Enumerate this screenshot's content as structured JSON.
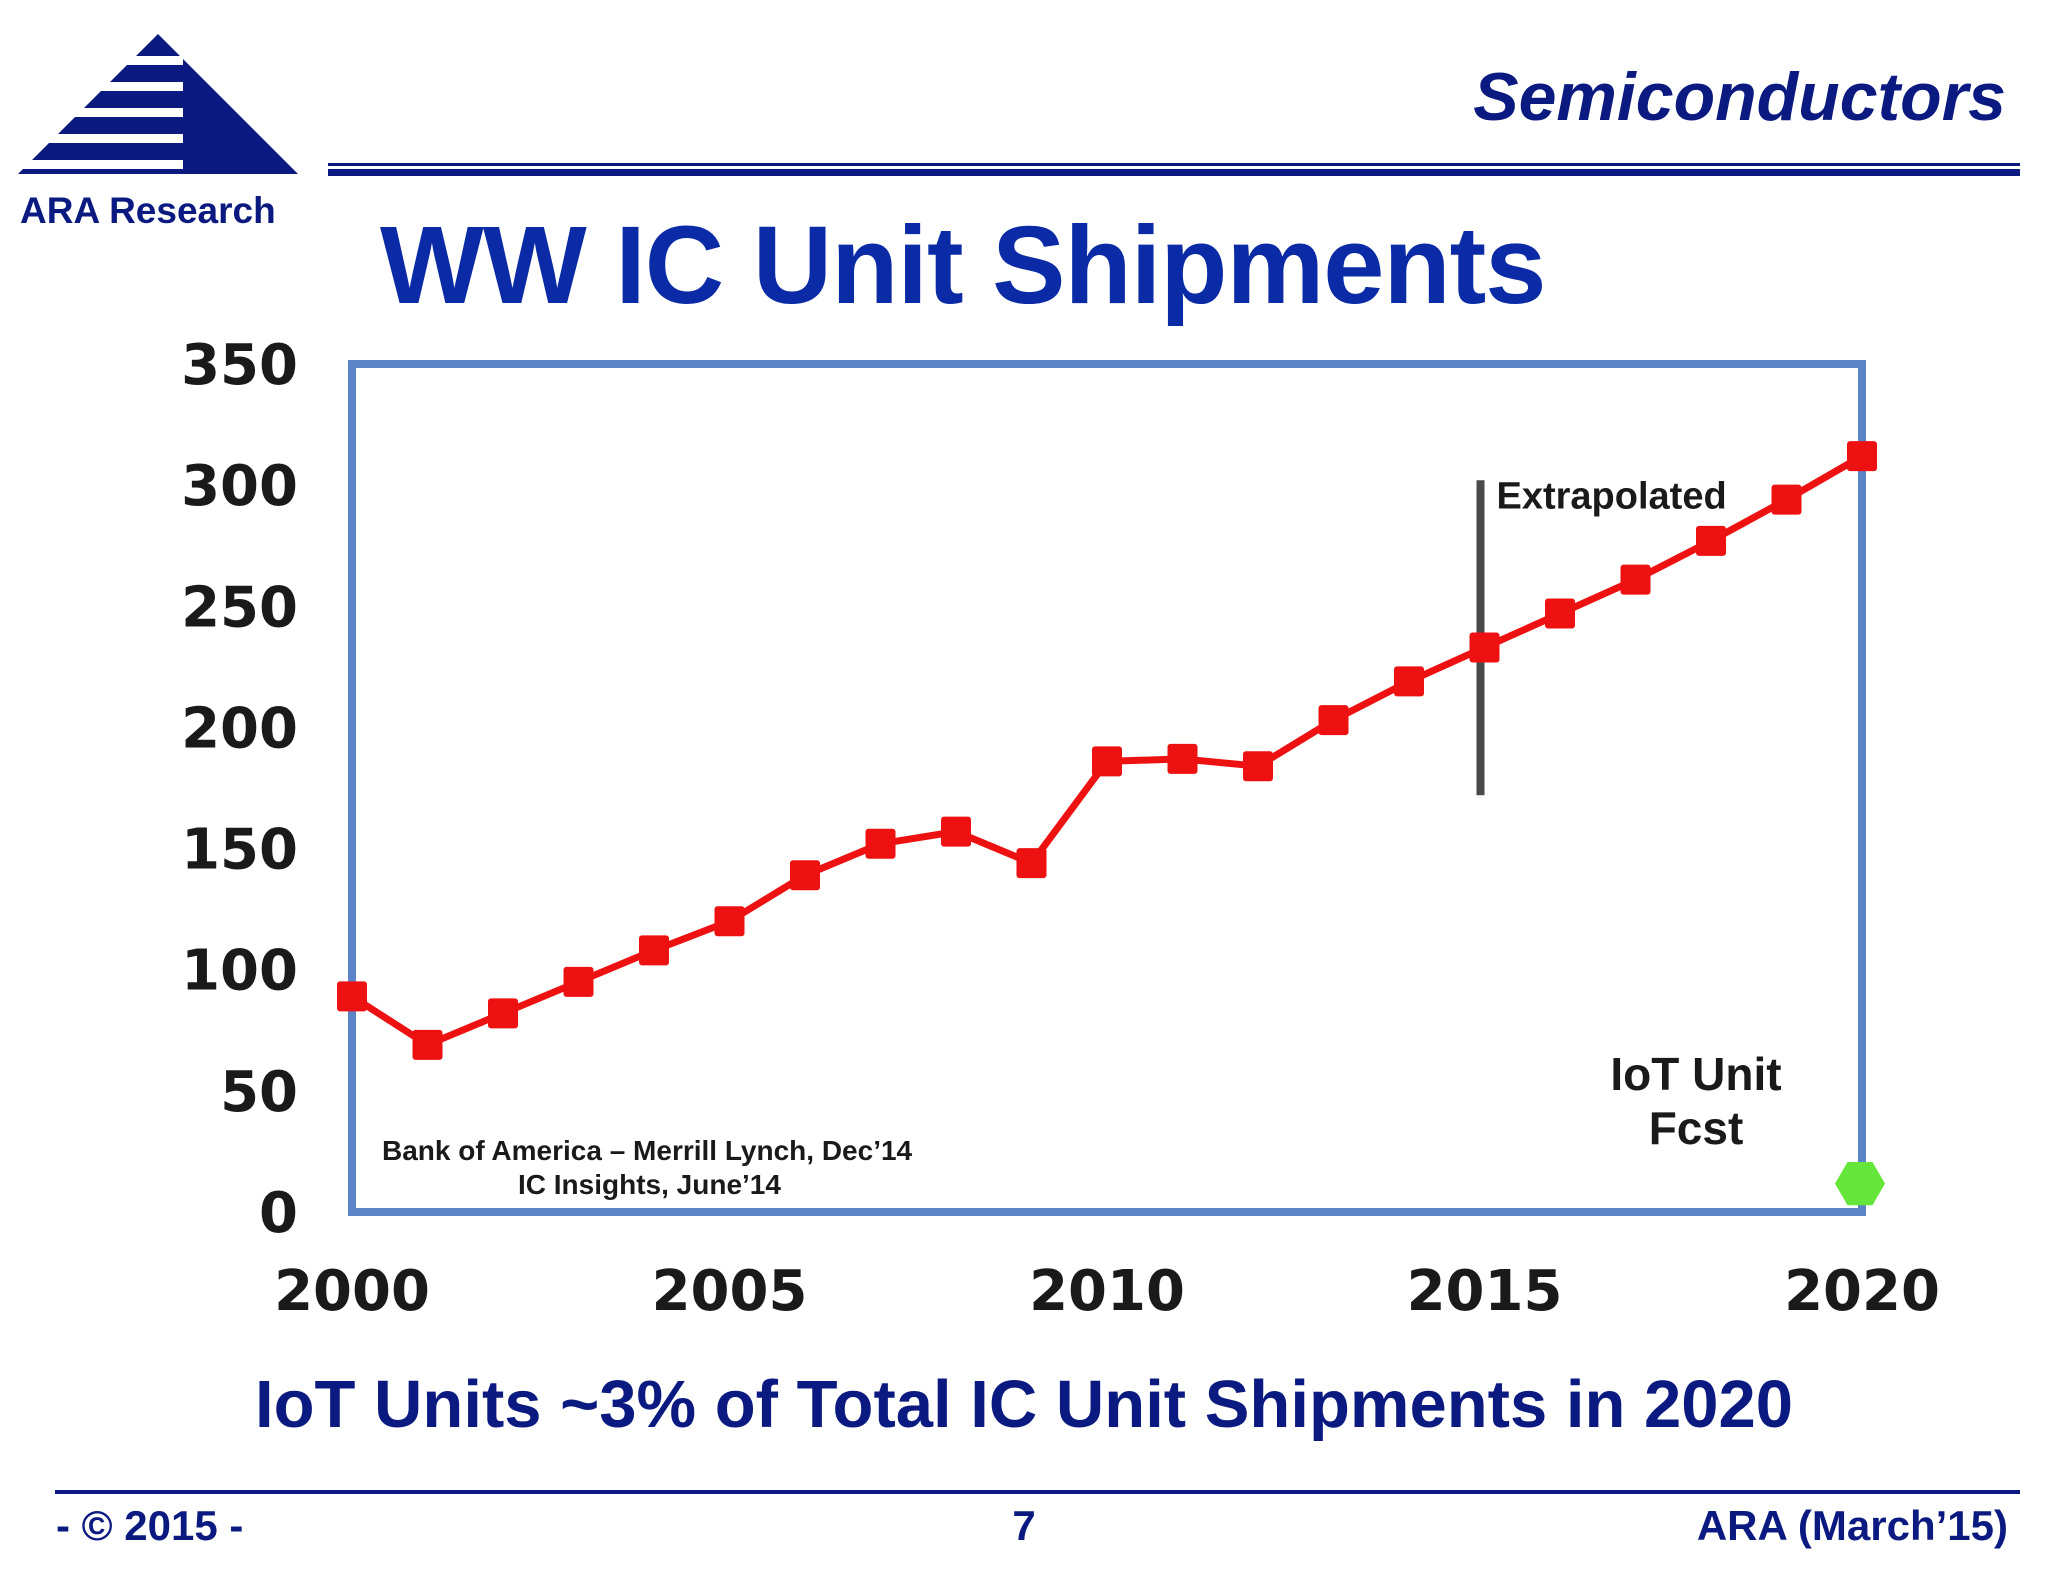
{
  "brand": {
    "name": "ARA Research",
    "color": "#0b1a80"
  },
  "header": {
    "section": "Semiconductors",
    "title": "WW IC Unit Shipments"
  },
  "chart_data": {
    "type": "line",
    "title": "",
    "xlabel": "",
    "ylabel": "",
    "xlim": [
      2000,
      2020
    ],
    "ylim": [
      0,
      350
    ],
    "x_ticks": [
      2000,
      2005,
      2010,
      2015,
      2020
    ],
    "y_ticks": [
      0,
      50,
      100,
      150,
      200,
      250,
      300,
      350
    ],
    "grid": false,
    "series": [
      {
        "color": "#ee1111",
        "x": [
          2000,
          2001,
          2002,
          2003,
          2004,
          2005,
          2006,
          2007,
          2008,
          2009,
          2010,
          2011,
          2012,
          2013,
          2014,
          2015,
          2016,
          2017,
          2018,
          2019,
          2020
        ],
        "y": [
          89,
          69,
          82,
          95,
          108,
          120,
          139,
          152,
          157,
          144,
          186,
          187,
          184,
          203,
          219,
          233,
          247,
          261,
          277,
          294,
          312
        ]
      }
    ],
    "iot_point": {
      "x": 2020,
      "y": 15,
      "color": "#66e63a",
      "label_lines": [
        "IoT Unit",
        "Fcst"
      ]
    },
    "extrapolated_marker": {
      "x": 2015,
      "y_range": [
        172,
        302
      ],
      "label": "Extrapolated"
    },
    "source_lines": [
      "Bank of America – Merrill Lynch, Dec’14",
      "IC Insights, June’14"
    ],
    "frame_color": "#5b85c6"
  },
  "subtitle": "IoT Units ~3% of Total IC Unit Shipments in 2020",
  "footer": {
    "left": "- © 2015 -",
    "center": "7",
    "right": "ARA (March’15)"
  }
}
